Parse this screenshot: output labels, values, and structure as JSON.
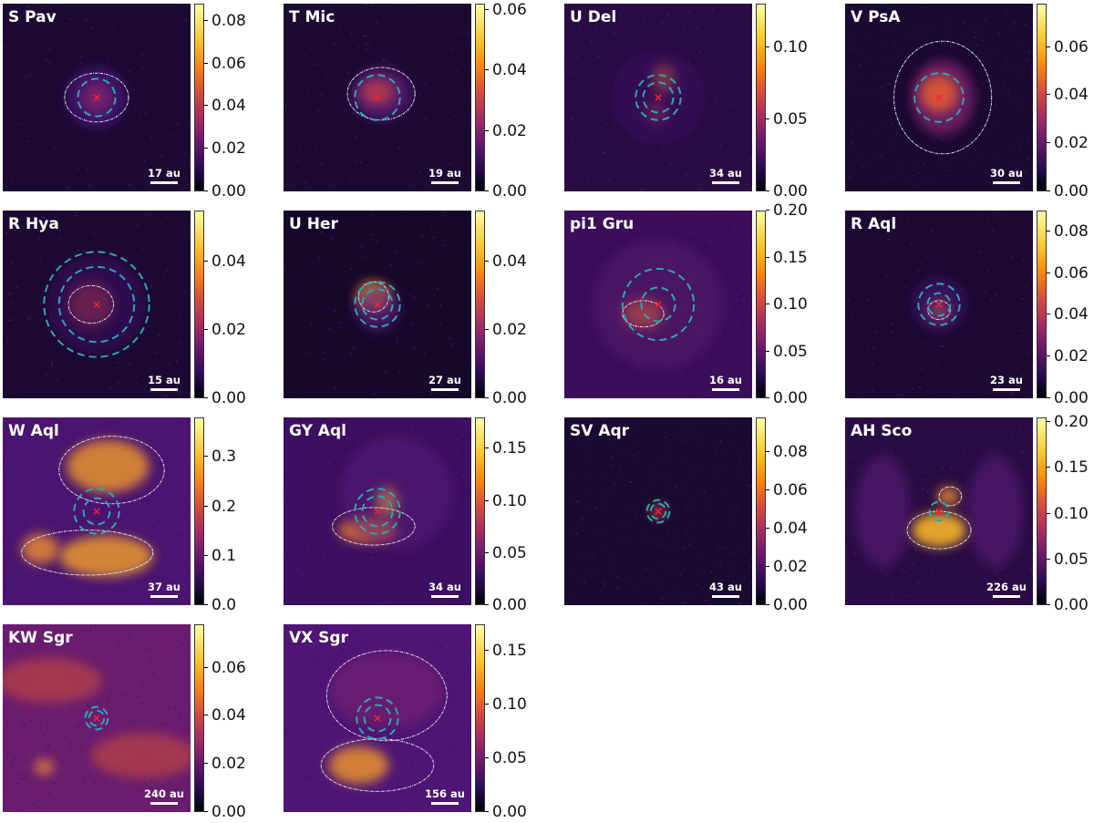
{
  "chart_data": [
    {
      "type": "heatmap",
      "title": "S Pav",
      "scale_bar": "17 au",
      "colorbar": {
        "min": 0.0,
        "max": 0.088,
        "ticks": [
          "0.00",
          "0.02",
          "0.04",
          "0.06",
          "0.08"
        ],
        "tick_values": [
          0,
          0.02,
          0.04,
          0.06,
          0.08
        ]
      },
      "colormap": "inferno"
    },
    {
      "type": "heatmap",
      "title": "T Mic",
      "scale_bar": "19 au",
      "colorbar": {
        "min": 0.0,
        "max": 0.062,
        "ticks": [
          "0.00",
          "0.02",
          "0.04",
          "0.06"
        ],
        "tick_values": [
          0,
          0.02,
          0.04,
          0.06
        ]
      },
      "colormap": "inferno"
    },
    {
      "type": "heatmap",
      "title": "U Del",
      "scale_bar": "34 au",
      "colorbar": {
        "min": 0.0,
        "max": 0.13,
        "ticks": [
          "0.00",
          "0.05",
          "0.10"
        ],
        "tick_values": [
          0,
          0.05,
          0.1
        ]
      },
      "colormap": "inferno"
    },
    {
      "type": "heatmap",
      "title": "V PsA",
      "scale_bar": "30 au",
      "colorbar": {
        "min": 0.0,
        "max": 0.078,
        "ticks": [
          "0.00",
          "0.02",
          "0.04",
          "0.06"
        ],
        "tick_values": [
          0,
          0.02,
          0.04,
          0.06
        ]
      },
      "colormap": "inferno"
    },
    {
      "type": "heatmap",
      "title": "R Hya",
      "scale_bar": "15 au",
      "colorbar": {
        "min": 0.0,
        "max": 0.055,
        "ticks": [
          "0.00",
          "0.02",
          "0.04"
        ],
        "tick_values": [
          0,
          0.02,
          0.04
        ]
      },
      "colormap": "inferno"
    },
    {
      "type": "heatmap",
      "title": "U Her",
      "scale_bar": "27 au",
      "colorbar": {
        "min": 0.0,
        "max": 0.055,
        "ticks": [
          "0.00",
          "0.02",
          "0.04"
        ],
        "tick_values": [
          0,
          0.02,
          0.04
        ]
      },
      "colormap": "inferno"
    },
    {
      "type": "heatmap",
      "title": "pi1 Gru",
      "scale_bar": "16 au",
      "colorbar": {
        "min": 0.0,
        "max": 0.2,
        "ticks": [
          "0.00",
          "0.05",
          "0.10",
          "0.15",
          "0.20"
        ],
        "tick_values": [
          0,
          0.05,
          0.1,
          0.15,
          0.2
        ]
      },
      "colormap": "inferno"
    },
    {
      "type": "heatmap",
      "title": "R Aql",
      "scale_bar": "23 au",
      "colorbar": {
        "min": 0.0,
        "max": 0.09,
        "ticks": [
          "0.00",
          "0.02",
          "0.04",
          "0.06",
          "0.08"
        ],
        "tick_values": [
          0,
          0.02,
          0.04,
          0.06,
          0.08
        ]
      },
      "colormap": "inferno"
    },
    {
      "type": "heatmap",
      "title": "W Aql",
      "scale_bar": "37 au",
      "colorbar": {
        "min": 0.0,
        "max": 0.38,
        "ticks": [
          "0.0",
          "0.1",
          "0.2",
          "0.3"
        ],
        "tick_values": [
          0,
          0.1,
          0.2,
          0.3
        ]
      },
      "colormap": "inferno"
    },
    {
      "type": "heatmap",
      "title": "GY Aql",
      "scale_bar": "34 au",
      "colorbar": {
        "min": 0.0,
        "max": 0.18,
        "ticks": [
          "0.00",
          "0.05",
          "0.10",
          "0.15"
        ],
        "tick_values": [
          0,
          0.05,
          0.1,
          0.15
        ]
      },
      "colormap": "inferno"
    },
    {
      "type": "heatmap",
      "title": "SV Aqr",
      "scale_bar": "43 au",
      "colorbar": {
        "min": 0.0,
        "max": 0.098,
        "ticks": [
          "0.00",
          "0.02",
          "0.04",
          "0.06",
          "0.08"
        ],
        "tick_values": [
          0,
          0.02,
          0.04,
          0.06,
          0.08
        ]
      },
      "colormap": "inferno"
    },
    {
      "type": "heatmap",
      "title": "AH Sco",
      "scale_bar": "226 au",
      "colorbar": {
        "min": 0.0,
        "max": 0.205,
        "ticks": [
          "0.00",
          "0.05",
          "0.10",
          "0.15",
          "0.20"
        ],
        "tick_values": [
          0,
          0.05,
          0.1,
          0.15,
          0.2
        ]
      },
      "colormap": "inferno"
    },
    {
      "type": "heatmap",
      "title": "KW Sgr",
      "scale_bar": "240 au",
      "colorbar": {
        "min": 0.0,
        "max": 0.078,
        "ticks": [
          "0.00",
          "0.02",
          "0.04",
          "0.06"
        ],
        "tick_values": [
          0,
          0.02,
          0.04,
          0.06
        ]
      },
      "colormap": "inferno"
    },
    {
      "type": "heatmap",
      "title": "VX Sgr",
      "scale_bar": "156 au",
      "colorbar": {
        "min": 0.0,
        "max": 0.175,
        "ticks": [
          "0.00",
          "0.05",
          "0.10",
          "0.15"
        ],
        "tick_values": [
          0,
          0.05,
          0.1,
          0.15
        ]
      },
      "colormap": "inferno"
    }
  ]
}
